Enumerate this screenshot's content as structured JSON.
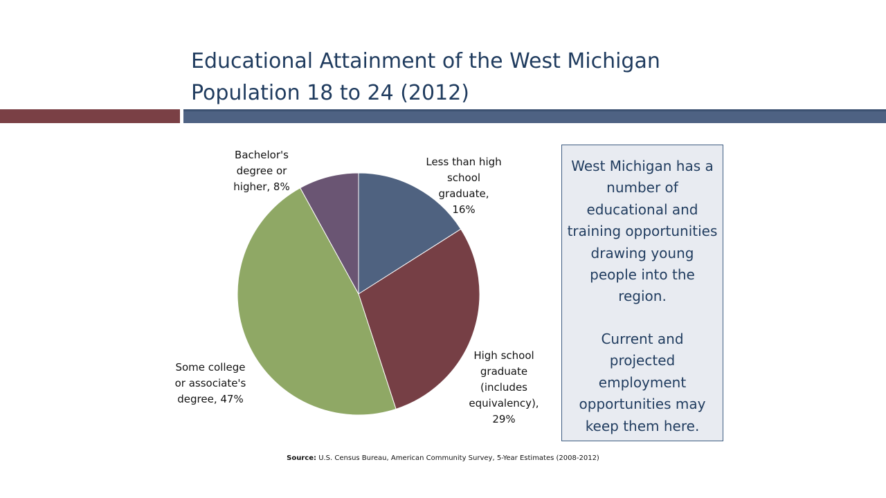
{
  "title": "Educational Attainment of the West Michigan\nPopulation 18 to 24 (2012)",
  "chart_data": {
    "type": "pie",
    "title": "Educational Attainment of the West Michigan Population 18 to 24 (2012)",
    "slices": [
      {
        "label": "Less than high school graduate, 16%",
        "value": 16,
        "color": "#4f6280"
      },
      {
        "label": "High school graduate (includes equivalency), 29%",
        "value": 29,
        "color": "#763f45"
      },
      {
        "label": "Some college or associate's degree, 47%",
        "value": 47,
        "color": "#8fa865"
      },
      {
        "label": "Bachelor's degree or higher, 8%",
        "value": 8,
        "color": "#6a5573"
      }
    ],
    "start_category": "Less than high school graduate",
    "direction": "clockwise",
    "labels": [
      "Less than high\nschool\ngraduate,\n16%",
      "High school\ngraduate\n(includes\nequivalency),\n29%",
      "Some college\nor associate's\ndegree, 47%",
      "Bachelor's\ndegree or\nhigher, 8%"
    ]
  },
  "callout": {
    "paragraph1": "West Michigan has a\nnumber of\neducational and\ntraining opportunities\ndrawing young\npeople into the\nregion.",
    "paragraph2": "Current and\nprojected\nemployment\nopportunities may\nkeep them here."
  },
  "source": {
    "label": "Source:",
    "text": "U.S. Census Bureau, American Community Survey, 5-Year Estimates (2008-2012)"
  },
  "colors": {
    "title": "#1f3b5e",
    "bar_left": "#7a4045",
    "bar_right": "#4e6283"
  }
}
